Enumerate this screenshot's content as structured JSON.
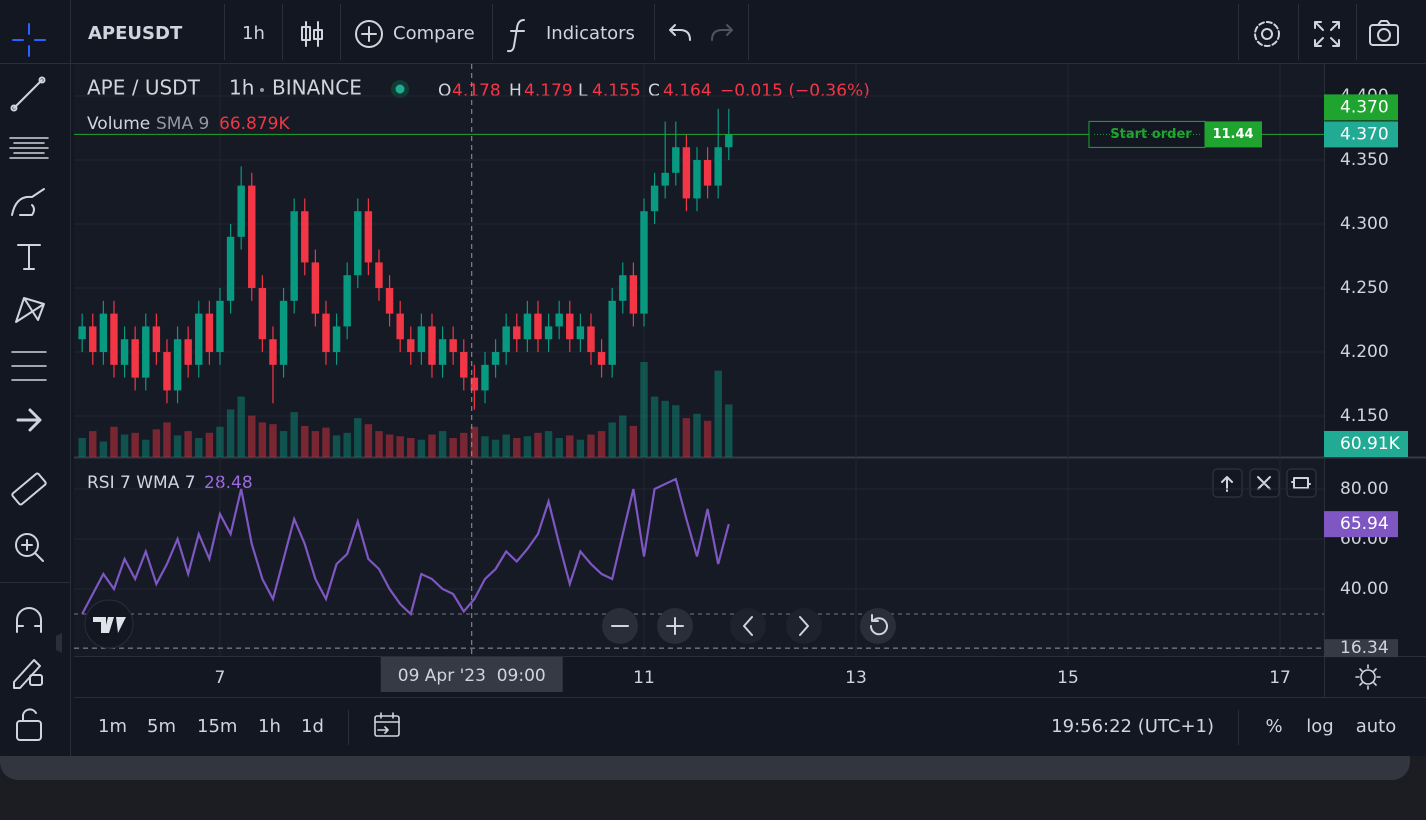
{
  "toolbar": {
    "symbol": "APEUSDT",
    "interval": "1h",
    "compare": "Compare",
    "indicators": "Indicators"
  },
  "legend": {
    "pair": "APE / USDT",
    "interval": "1h",
    "exchange": "BINANCE",
    "o_label": "O",
    "open": 4.178,
    "h_label": "H",
    "high": 4.179,
    "l_label": "L",
    "low": 4.155,
    "c_label": "C",
    "close": 4.164,
    "change": "−0.015 (−0.36%)",
    "volume_name": "Volume",
    "volume_sma": "SMA 9",
    "volume_value": "66.879K",
    "rsi_name": "RSI 7 WMA 7",
    "rsi_value": 28.48
  },
  "chart_data": [
    {
      "type": "candlestick",
      "x": [
        5.7,
        5.8,
        5.9,
        6.0,
        6.1,
        6.2,
        6.3,
        6.4,
        6.5,
        6.6,
        6.7,
        6.8,
        6.9,
        7.0,
        7.1,
        7.2,
        7.3,
        7.4,
        7.5,
        7.6,
        7.7,
        7.8,
        7.9,
        8.0,
        8.1,
        8.2,
        8.3,
        8.4,
        8.5,
        8.6,
        8.7,
        8.8,
        8.9,
        9.0,
        9.1,
        9.2,
        9.3,
        9.4,
        9.5,
        9.6,
        9.7,
        9.8,
        9.9,
        10.0,
        10.1,
        10.2,
        10.3,
        10.4,
        10.5,
        10.6,
        10.7,
        10.8,
        10.9,
        11.0,
        11.1,
        11.2,
        11.3,
        11.4,
        11.5,
        11.6,
        11.7,
        11.8
      ],
      "open": [
        4.21,
        4.22,
        4.2,
        4.23,
        4.19,
        4.21,
        4.18,
        4.22,
        4.2,
        4.17,
        4.21,
        4.19,
        4.23,
        4.2,
        4.24,
        4.29,
        4.33,
        4.25,
        4.21,
        4.19,
        4.24,
        4.31,
        4.27,
        4.23,
        4.2,
        4.22,
        4.26,
        4.31,
        4.27,
        4.25,
        4.23,
        4.21,
        4.2,
        4.22,
        4.19,
        4.21,
        4.2,
        4.18,
        4.17,
        4.19,
        4.2,
        4.22,
        4.21,
        4.23,
        4.21,
        4.22,
        4.23,
        4.21,
        4.22,
        4.2,
        4.19,
        4.24,
        4.26,
        4.23,
        4.31,
        4.33,
        4.34,
        4.36,
        4.32,
        4.35,
        4.33,
        4.36
      ],
      "high": [
        4.23,
        4.23,
        4.24,
        4.24,
        4.22,
        4.22,
        4.23,
        4.23,
        4.21,
        4.22,
        4.22,
        4.24,
        4.24,
        4.25,
        4.3,
        4.345,
        4.34,
        4.26,
        4.22,
        4.25,
        4.32,
        4.32,
        4.28,
        4.24,
        4.23,
        4.27,
        4.32,
        4.32,
        4.28,
        4.26,
        4.24,
        4.22,
        4.23,
        4.23,
        4.22,
        4.22,
        4.21,
        4.19,
        4.2,
        4.21,
        4.23,
        4.23,
        4.24,
        4.24,
        4.23,
        4.24,
        4.24,
        4.23,
        4.23,
        4.21,
        4.25,
        4.27,
        4.27,
        4.32,
        4.34,
        4.38,
        4.38,
        4.37,
        4.36,
        4.36,
        4.39,
        4.39
      ],
      "low": [
        4.2,
        4.19,
        4.19,
        4.18,
        4.18,
        4.17,
        4.17,
        4.19,
        4.16,
        4.16,
        4.18,
        4.18,
        4.19,
        4.19,
        4.23,
        4.28,
        4.24,
        4.2,
        4.16,
        4.18,
        4.23,
        4.26,
        4.22,
        4.19,
        4.19,
        4.21,
        4.25,
        4.26,
        4.24,
        4.22,
        4.2,
        4.19,
        4.19,
        4.18,
        4.18,
        4.19,
        4.17,
        4.155,
        4.16,
        4.18,
        4.19,
        4.2,
        4.2,
        4.2,
        4.2,
        4.21,
        4.2,
        4.2,
        4.19,
        4.18,
        4.18,
        4.23,
        4.22,
        4.22,
        4.3,
        4.32,
        4.33,
        4.31,
        4.31,
        4.32,
        4.32,
        4.35
      ],
      "close": [
        4.22,
        4.2,
        4.23,
        4.19,
        4.21,
        4.18,
        4.22,
        4.2,
        4.17,
        4.21,
        4.19,
        4.23,
        4.2,
        4.24,
        4.29,
        4.33,
        4.25,
        4.21,
        4.19,
        4.24,
        4.31,
        4.27,
        4.23,
        4.2,
        4.22,
        4.26,
        4.31,
        4.27,
        4.25,
        4.23,
        4.21,
        4.2,
        4.22,
        4.19,
        4.21,
        4.2,
        4.18,
        4.17,
        4.19,
        4.2,
        4.22,
        4.21,
        4.23,
        4.21,
        4.22,
        4.23,
        4.21,
        4.22,
        4.2,
        4.19,
        4.24,
        4.26,
        4.23,
        4.31,
        4.33,
        4.34,
        4.36,
        4.32,
        4.35,
        4.33,
        4.36,
        4.37
      ],
      "volume": [
        22000,
        30000,
        18000,
        35000,
        26000,
        28000,
        20000,
        32000,
        40000,
        25000,
        30000,
        22000,
        28000,
        35000,
        55000,
        70000,
        48000,
        40000,
        38000,
        30000,
        52000,
        36000,
        30000,
        34000,
        25000,
        28000,
        45000,
        38000,
        30000,
        26000,
        24000,
        22000,
        20000,
        26000,
        30000,
        22000,
        28000,
        35000,
        24000,
        20000,
        26000,
        22000,
        24000,
        28000,
        30000,
        22000,
        25000,
        20000,
        26000,
        30000,
        40000,
        48000,
        36000,
        110000,
        70000,
        65000,
        60000,
        45000,
        50000,
        42000,
        100000,
        60910
      ],
      "up_color": "#089981",
      "down_color": "#f23645",
      "xlim": [
        5.623,
        17.415
      ],
      "xticks": [
        7,
        11,
        13,
        15,
        17
      ],
      "ylim": [
        4.118,
        4.425
      ],
      "yticks": [
        {
          "value": 4.15,
          "label": "4.150"
        },
        {
          "value": 4.2,
          "label": "4.200"
        },
        {
          "value": 4.25,
          "label": "4.250"
        },
        {
          "value": 4.3,
          "label": "4.300"
        },
        {
          "value": 4.35,
          "label": "4.350"
        },
        {
          "value": 4.4,
          "label": "4.400"
        }
      ],
      "grid": true,
      "last_price": {
        "value": 4.37,
        "label": "4.370"
      },
      "order_line": {
        "label": "Start order",
        "price": {
          "value": 4.37,
          "label": "4.370"
        },
        "quantity": 11.44,
        "color": "#1fa52f"
      },
      "last_volume": {
        "value": 60910,
        "label": "60.91K"
      }
    },
    {
      "type": "line",
      "x": [
        5.7,
        5.8,
        5.9,
        6.0,
        6.1,
        6.2,
        6.3,
        6.4,
        6.5,
        6.6,
        6.7,
        6.8,
        6.9,
        7.0,
        7.1,
        7.2,
        7.3,
        7.4,
        7.5,
        7.6,
        7.7,
        7.8,
        7.9,
        8.0,
        8.1,
        8.2,
        8.3,
        8.4,
        8.5,
        8.6,
        8.7,
        8.8,
        8.9,
        9.0,
        9.1,
        9.2,
        9.3,
        9.4,
        9.5,
        9.6,
        9.7,
        9.8,
        9.9,
        10.0,
        10.1,
        10.2,
        10.3,
        10.4,
        10.5,
        10.6,
        10.7,
        10.8,
        10.9,
        11.0,
        11.1,
        11.2,
        11.3,
        11.4,
        11.5,
        11.6,
        11.7,
        11.8
      ],
      "values": [
        30,
        38,
        46,
        40,
        52,
        44,
        55,
        42,
        50,
        60,
        46,
        62,
        52,
        70,
        62,
        80,
        58,
        44,
        36,
        52,
        68,
        58,
        44,
        36,
        50,
        54,
        67,
        52,
        48,
        40,
        34,
        30,
        46,
        44,
        40,
        38,
        31,
        36,
        44,
        48,
        55,
        51,
        56,
        62,
        75,
        58,
        42,
        55,
        50,
        46,
        44,
        62,
        80,
        53,
        80,
        82,
        84,
        68,
        53,
        72,
        50,
        65.94
      ],
      "color": "#7e57c2",
      "xlim": [
        5.623,
        17.415
      ],
      "ylim": [
        13.2,
        92.4
      ],
      "yticks": [
        {
          "value": 40,
          "label": "40.00"
        },
        {
          "value": 60,
          "label": "60.00"
        },
        {
          "value": 80,
          "label": "80.00"
        }
      ],
      "grid": true,
      "level": 30
    }
  ],
  "crosshair": {
    "x": 9.375,
    "x_label": "09 Apr '23  09:00",
    "y": 16.34
  },
  "bottom_bar": {
    "intervals": [
      "1m",
      "5m",
      "15m",
      "1h",
      "1d"
    ],
    "clock": "19:56:22 (UTC+1)",
    "percent": "%",
    "log": "log",
    "auto": "auto"
  }
}
